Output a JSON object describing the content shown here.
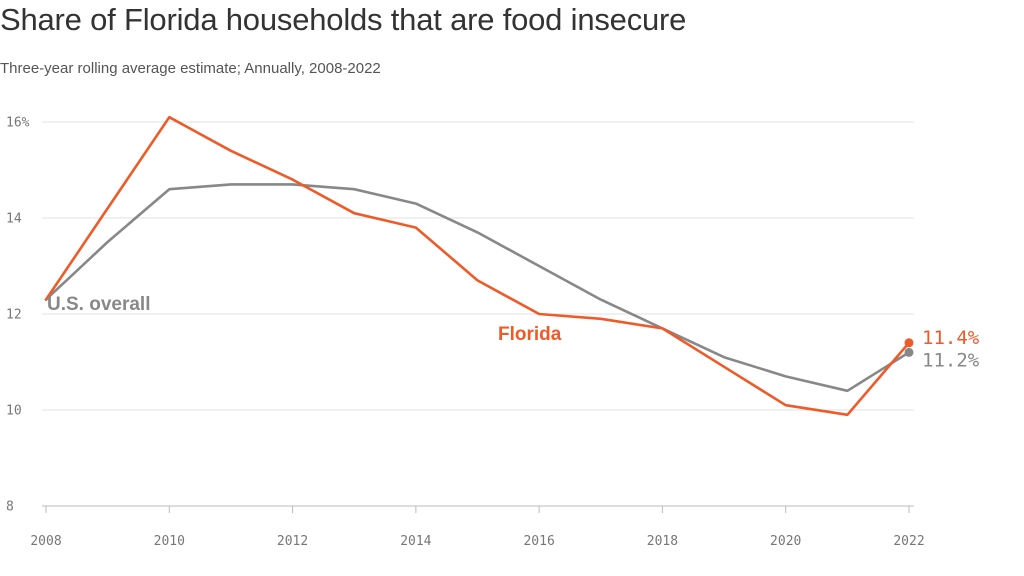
{
  "chart_data": {
    "type": "line",
    "title": "Share of Florida households that are food insecure",
    "subtitle": "Three-year rolling average estimate; Annually, 2008-2022",
    "xlabel": "",
    "ylabel": "",
    "x": [
      2008,
      2009,
      2010,
      2011,
      2012,
      2013,
      2014,
      2015,
      2016,
      2017,
      2018,
      2019,
      2020,
      2021,
      2022
    ],
    "xlim": [
      2008,
      2022
    ],
    "ylim": [
      8,
      16
    ],
    "x_ticks": [
      "2008",
      "2010",
      "2012",
      "2014",
      "2016",
      "2018",
      "2020",
      "2022"
    ],
    "y_ticks": [
      {
        "value": 8,
        "label": "8"
      },
      {
        "value": 10,
        "label": "10"
      },
      {
        "value": 12,
        "label": "12"
      },
      {
        "value": 14,
        "label": "14"
      },
      {
        "value": 16,
        "label": "16%"
      }
    ],
    "grid": true,
    "series": [
      {
        "name": "Florida",
        "label": "Florida",
        "color": "#f05a28",
        "values": [
          12.3,
          14.2,
          16.1,
          15.4,
          14.8,
          14.1,
          13.8,
          12.7,
          12.0,
          11.9,
          11.7,
          10.9,
          10.1,
          9.9,
          11.4
        ],
        "end_label": "11.4%"
      },
      {
        "name": "U.S. overall",
        "label": "U.S. overall",
        "color": "#888888",
        "values": [
          12.3,
          13.5,
          14.6,
          14.7,
          14.7,
          14.6,
          14.3,
          13.7,
          13.0,
          12.3,
          11.7,
          11.1,
          10.7,
          10.4,
          11.2
        ],
        "end_label": "11.2%"
      }
    ]
  }
}
